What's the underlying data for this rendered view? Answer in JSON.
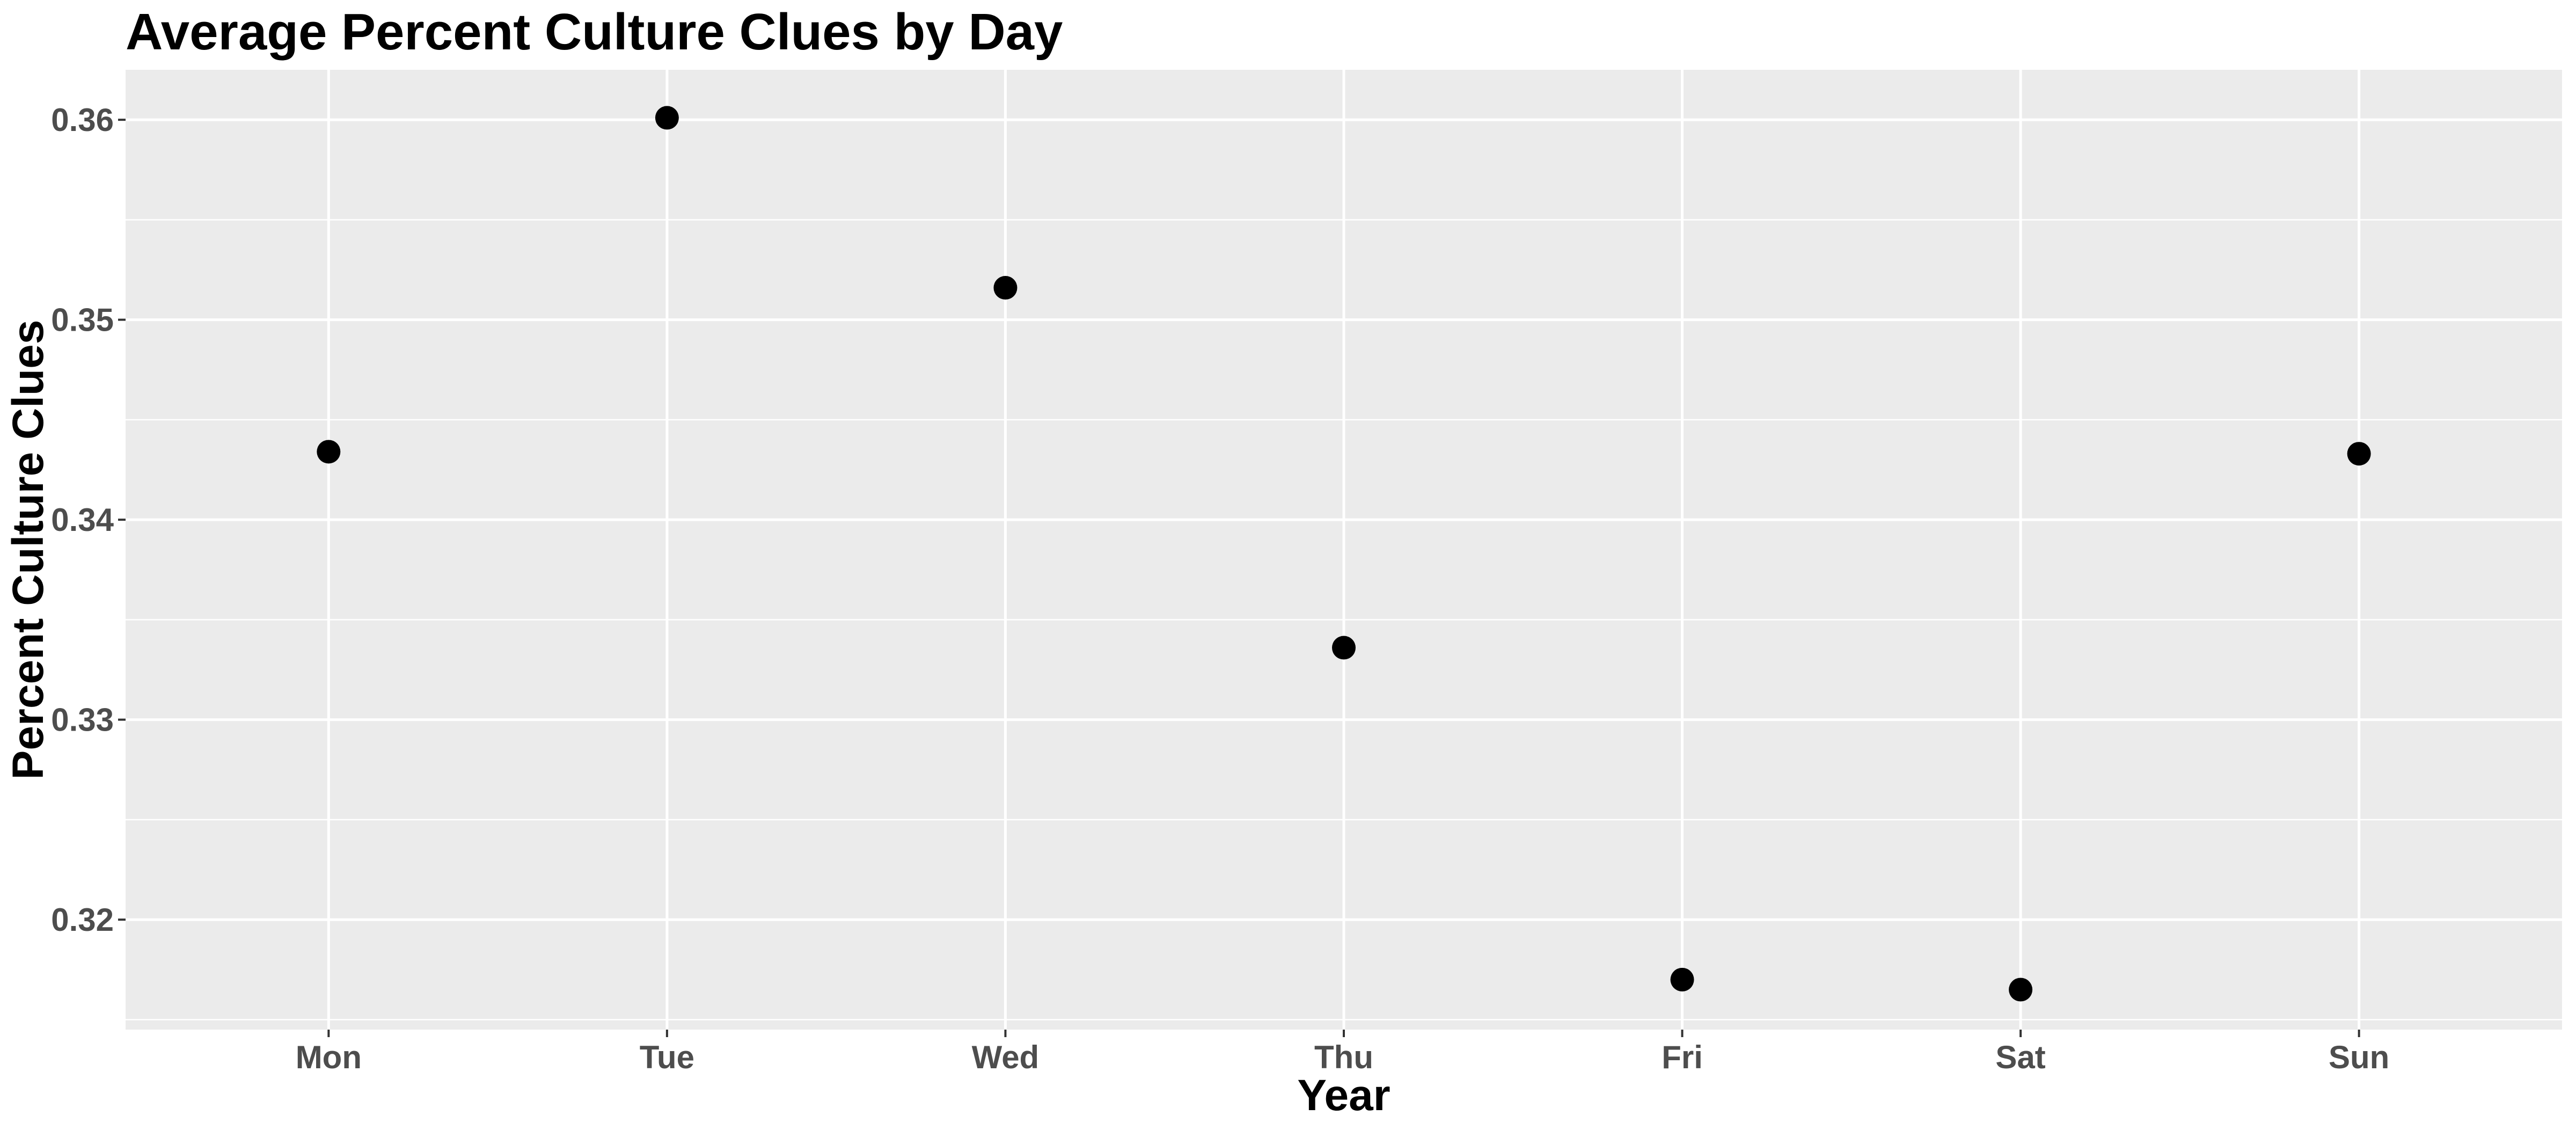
{
  "chart_data": {
    "type": "scatter",
    "title": "Average Percent Culture Clues by Day",
    "xlabel": "Year",
    "ylabel": "Percent Culture Clues",
    "categories": [
      "Mon",
      "Tue",
      "Wed",
      "Thu",
      "Fri",
      "Sat",
      "Sun"
    ],
    "values": [
      0.3434,
      0.3601,
      0.3516,
      0.3336,
      0.317,
      0.3165,
      0.3433
    ],
    "ylim": [
      0.3145,
      0.3625
    ],
    "yticks": [
      0.32,
      0.33,
      0.34,
      0.35,
      0.36
    ],
    "ytick_labels": [
      "0.32",
      "0.33",
      "0.34",
      "0.35",
      "0.36"
    ],
    "grid": true,
    "legend": "none",
    "colors": {
      "panel_background": "#ebebeb",
      "grid_major": "#ffffff",
      "point": "#000000",
      "tick_text": "#4d4d4d"
    }
  }
}
